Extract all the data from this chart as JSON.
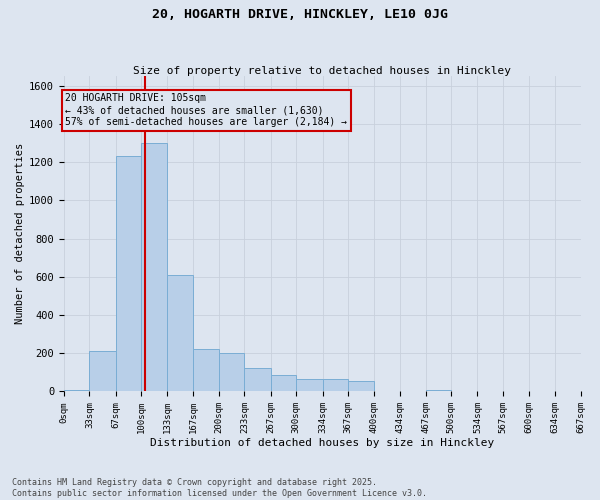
{
  "title1": "20, HOGARTH DRIVE, HINCKLEY, LE10 0JG",
  "title2": "Size of property relative to detached houses in Hinckley",
  "xlabel": "Distribution of detached houses by size in Hinckley",
  "ylabel": "Number of detached properties",
  "annotation_line1": "20 HOGARTH DRIVE: 105sqm",
  "annotation_line2": "← 43% of detached houses are smaller (1,630)",
  "annotation_line3": "57% of semi-detached houses are larger (2,184) →",
  "property_size": 105,
  "bin_edges": [
    0,
    33,
    67,
    100,
    133,
    167,
    200,
    233,
    267,
    300,
    334,
    367,
    400,
    434,
    467,
    500,
    534,
    567,
    600,
    634,
    667
  ],
  "bin_counts": [
    5,
    210,
    1230,
    1300,
    610,
    220,
    200,
    120,
    85,
    65,
    65,
    55,
    0,
    0,
    5,
    0,
    0,
    0,
    0,
    0
  ],
  "bar_color": "#b8cfe8",
  "bar_edge_color": "#7aadd4",
  "vline_color": "#cc0000",
  "grid_color": "#c8d0dc",
  "bg_color": "#dde5f0",
  "annotation_box_color": "#cc0000",
  "ylim": [
    0,
    1650
  ],
  "yticks": [
    0,
    200,
    400,
    600,
    800,
    1000,
    1200,
    1400,
    1600
  ],
  "footnote1": "Contains HM Land Registry data © Crown copyright and database right 2025.",
  "footnote2": "Contains public sector information licensed under the Open Government Licence v3.0."
}
